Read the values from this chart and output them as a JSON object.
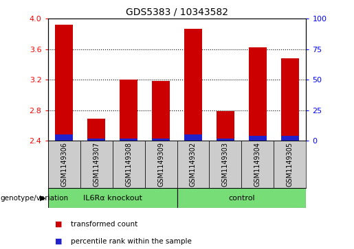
{
  "title": "GDS5383 / 10343582",
  "samples": [
    "GSM1149306",
    "GSM1149307",
    "GSM1149308",
    "GSM1149309",
    "GSM1149302",
    "GSM1149303",
    "GSM1149304",
    "GSM1149305"
  ],
  "transformed_counts": [
    3.92,
    2.69,
    3.2,
    3.18,
    3.87,
    2.79,
    3.62,
    3.48
  ],
  "percentile_ranks": [
    5,
    2,
    2,
    2,
    5,
    2,
    4,
    4
  ],
  "bar_bottom": 2.4,
  "ylim_left": [
    2.4,
    4.0
  ],
  "ylim_right": [
    0,
    100
  ],
  "yticks_left": [
    2.4,
    2.8,
    3.2,
    3.6,
    4.0
  ],
  "yticks_right": [
    0,
    25,
    50,
    75,
    100
  ],
  "grid_yticks": [
    2.8,
    3.2,
    3.6
  ],
  "groups": [
    {
      "label": "IL6Rα knockout",
      "start": 0,
      "end": 4,
      "color": "#77dd77"
    },
    {
      "label": "control",
      "start": 4,
      "end": 8,
      "color": "#77dd77"
    }
  ],
  "group_label_prefix": "genotype/variation",
  "bar_color_red": "#cc0000",
  "bar_color_blue": "#2222cc",
  "bar_width": 0.55,
  "bg_plot_color": "#ffffff",
  "bg_sample_color": "#cccccc",
  "legend_items": [
    {
      "color": "#cc0000",
      "label": "transformed count"
    },
    {
      "color": "#2222cc",
      "label": "percentile rank within the sample"
    }
  ]
}
